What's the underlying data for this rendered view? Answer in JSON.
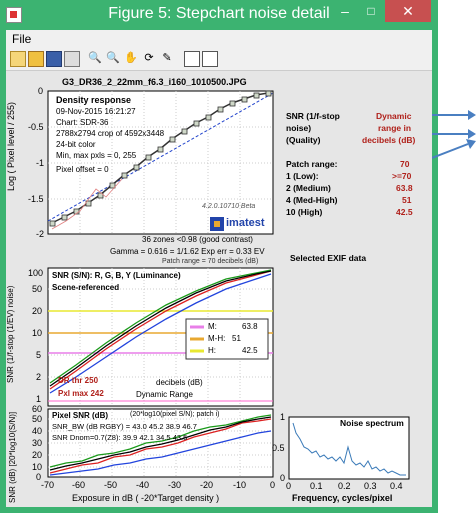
{
  "window": {
    "title": "Figure 5: Stepchart noise detail",
    "minimize": "–",
    "maximize": "□",
    "close": "✕"
  },
  "menu": {
    "file": "File"
  },
  "toolbar": [
    "new-file-icon",
    "open-icon",
    "save-icon",
    "print-icon",
    "zoom-in-icon",
    "zoom-out-icon",
    "pan-icon",
    "rotate-icon",
    "data-cursor-icon",
    "colorbar-icon",
    "legend-icon"
  ],
  "plot1": {
    "file_title": "G3_DR36_2_22mm_f6.3_i160_1010500.JPG",
    "heading": "Density response",
    "info": [
      "09-Nov-2015 16:21:27",
      "Chart: SDR-36",
      "2788x2794 crop of 4592x3448",
      "24-bit color",
      "Min, max pxls = 0, 255",
      "Pixel offset = 0"
    ],
    "ylabel": "Log ( Pixel level / 255)",
    "yticks": [
      "0",
      "-0.5",
      "-1",
      "-1.5",
      "-2"
    ],
    "version": "4.2.0.10710 Beta",
    "brand": "imatest",
    "zones": "36 zones <0.98 (good contrast)",
    "gamma": "Gamma = 0.616 = 1/1.62  Exp err = 0.33 EV",
    "patch": "Patch range = 70 decibels (dB)"
  },
  "plot2": {
    "title": "SNR (S/N): R, G, B, Y (Luminance)",
    "subtitle": "Scene-referenced",
    "ylabel": "SNR (1/f-stop (1/EV) noise)",
    "yticks": [
      "100",
      "50",
      "20",
      "10",
      "5",
      "2",
      "1"
    ],
    "dr_thr": "DR thr 250",
    "pxl_max": "Pxl max 242",
    "decibels": "decibels (dB)",
    "dynamic_range": "Dynamic Range",
    "legend": [
      {
        "label": "M:",
        "value": "63.8",
        "color": "#e87fe8"
      },
      {
        "label": "M-H:",
        "value": "51",
        "color": "#e8a830"
      },
      {
        "label": "H:",
        "value": "42.5",
        "color": "#e8e830"
      }
    ]
  },
  "plot3": {
    "title": "Pixel SNR (dB)",
    "formula": "(20*log10(pixel S/N); patch i)",
    "line1": "SNR_BW (dB RGBY) = 43.0 45.2 38.9 46.7",
    "line2": "SNR Dnom=0.7(Z8): 39.9 42.1 34.5 43.5",
    "ylabel": "SNR (dB) [20*log10(S/N)]",
    "yticks": [
      "60",
      "50",
      "40",
      "30",
      "20",
      "10",
      "0"
    ],
    "xticks": [
      "-70",
      "-60",
      "-50",
      "-40",
      "-30",
      "-20",
      "-10",
      "0"
    ],
    "xlabel": "Exposure in dB ( -20*Target density )"
  },
  "snr_table": {
    "col1": [
      "SNR (1/f-stop",
      "noise)",
      "(Quality)"
    ],
    "col2": [
      "Dynamic",
      "range in",
      "decibels (dB)"
    ],
    "rows": [
      {
        "label": "Patch range:",
        "value": "70"
      },
      {
        "label": "1  (Low):",
        "value": ">=70"
      },
      {
        "label": "2  (Medium)",
        "value": "63.8"
      },
      {
        "label": "4  (Med-High)",
        "value": "51"
      },
      {
        "label": "10 (High)",
        "value": "42.5"
      }
    ]
  },
  "exif": {
    "label": "Selected EXIF data"
  },
  "spectrum": {
    "title": "Noise spectrum",
    "yticks": [
      "1",
      "0.5",
      "0"
    ],
    "xticks": [
      "0",
      "0.1",
      "0.2",
      "0.3",
      "0.4"
    ],
    "xlabel": "Frequency, cycles/pixel"
  },
  "colors": {
    "titlebar": "#3cb371",
    "close": "#c75050",
    "red_text": "#b0201a",
    "arrow": "#4a7fc1"
  }
}
